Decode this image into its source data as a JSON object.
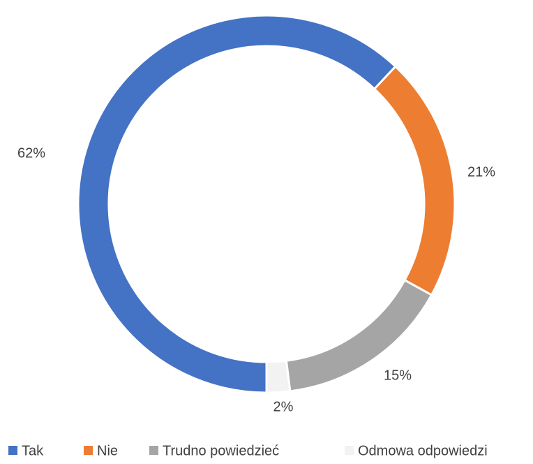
{
  "chart_data": {
    "type": "pie",
    "donut": true,
    "categories": [
      "Tak",
      "Nie",
      "Trudno powiedzieć",
      "Odmowa odpowiedzi"
    ],
    "values": [
      62,
      21,
      15,
      2
    ],
    "value_labels": [
      "62%",
      "21%",
      "15%",
      "2%"
    ],
    "colors": [
      "#4472c4",
      "#ed7d31",
      "#a5a5a5",
      "#f2f2f2"
    ],
    "legend": "bottom"
  }
}
